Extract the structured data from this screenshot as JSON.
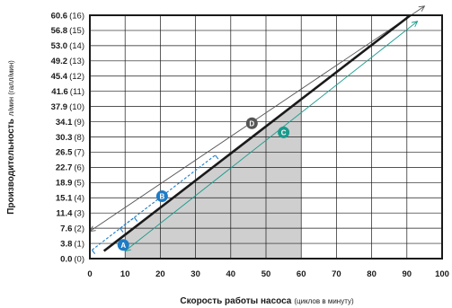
{
  "chart_data": {
    "type": "line",
    "x_ticks": [
      "0",
      "10",
      "20",
      "30",
      "40",
      "50",
      "60",
      "70",
      "80",
      "90",
      "100"
    ],
    "xlim": [
      0,
      100
    ],
    "y_tick_values": [
      0,
      1,
      2,
      3,
      4,
      5,
      6,
      7,
      8,
      9,
      10,
      11,
      12,
      13,
      14,
      15,
      16
    ],
    "y_ticks_primary": [
      "0.0",
      "3.8",
      "7.6",
      "11.4",
      "15.1",
      "18.9",
      "22.7",
      "26.5",
      "30.3",
      "34.1",
      "37.9",
      "41.6",
      "45.4",
      "49.2",
      "53.0",
      "56.8",
      "60.6"
    ],
    "y_ticks_secondary": [
      "(0)",
      "(1)",
      "(2)",
      "(3)",
      "(4)",
      "(5)",
      "(6)",
      "(7)",
      "(8)",
      "(9)",
      "(10)",
      "(11)",
      "(12)",
      "(13)",
      "(14)",
      "(15)",
      "(16)"
    ],
    "ylim": [
      0,
      16
    ],
    "xlabel_main": "Скорость работы насоса",
    "xlabel_sub": "(циклов в минуту)",
    "ylabel_main": "Производительность",
    "ylabel_sub": "л/мин (галл/мин)",
    "grid": true,
    "shaded_region": {
      "x": [
        10,
        60
      ],
      "color": "#cfcfcf"
    },
    "series": [
      {
        "style": "main",
        "color": "#1a1a1a",
        "x": [
          4,
          91
        ],
        "y": [
          0.5,
          16
        ]
      }
    ],
    "guides": [
      {
        "id": "D",
        "color": "#555555",
        "x": [
          0,
          95
        ],
        "y": [
          1.8,
          16.6
        ]
      },
      {
        "id": "C",
        "color": "#1a9a8c",
        "x": [
          10,
          93
        ],
        "y": [
          0.5,
          15.6
        ]
      }
    ],
    "brackets": [
      {
        "id": "A",
        "color": "#1e7cc6",
        "x": [
          2,
          14
        ]
      },
      {
        "id": "B",
        "color": "#1e7cc6",
        "x": [
          10,
          37
        ]
      }
    ],
    "markers": [
      {
        "id": "A",
        "label": "A",
        "color": "#1e7cc6",
        "x": 9.5,
        "y": 0.9
      },
      {
        "id": "B",
        "label": "B",
        "color": "#1e7cc6",
        "x": 20.5,
        "y": 4.1
      },
      {
        "id": "D",
        "label": "D",
        "color": "#555555",
        "x": 46,
        "y": 8.9
      },
      {
        "id": "C",
        "label": "C",
        "color": "#1a9a8c",
        "x": 55,
        "y": 8.3
      }
    ]
  }
}
